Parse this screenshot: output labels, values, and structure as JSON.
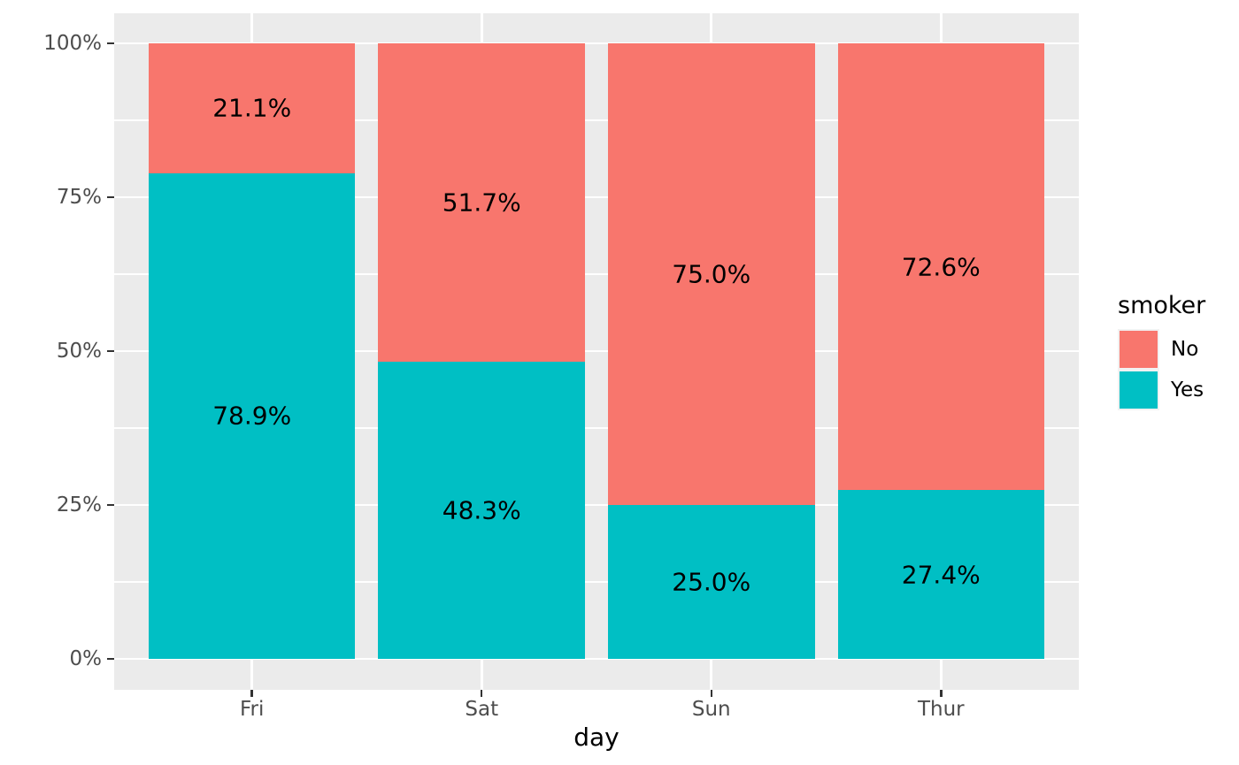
{
  "chart_data": {
    "type": "bar",
    "variant": "stacked-percent",
    "title": "",
    "xlabel": "day",
    "ylabel": "",
    "categories": [
      "Fri",
      "Sat",
      "Sun",
      "Thur"
    ],
    "series": [
      {
        "name": "No",
        "color": "#F8766D",
        "values": [
          21.1,
          51.7,
          75.0,
          72.6
        ],
        "labels": [
          "21.1%",
          "51.7%",
          "75.0%",
          "72.6%"
        ]
      },
      {
        "name": "Yes",
        "color": "#00BFC4",
        "values": [
          78.9,
          48.3,
          25.0,
          27.4
        ],
        "labels": [
          "78.9%",
          "48.3%",
          "25.0%",
          "27.4%"
        ]
      }
    ],
    "y_axis": {
      "range": [
        0,
        100
      ],
      "ticks": [
        {
          "value": 0,
          "label": "0%"
        },
        {
          "value": 25,
          "label": "25%"
        },
        {
          "value": 50,
          "label": "50%"
        },
        {
          "value": 75,
          "label": "75%"
        },
        {
          "value": 100,
          "label": "100%"
        }
      ],
      "minor": [
        12.5,
        37.5,
        62.5,
        87.5
      ]
    },
    "legend": {
      "title": "smoker",
      "position": "right",
      "entries": [
        {
          "label": "No",
          "color": "#F8766D"
        },
        {
          "label": "Yes",
          "color": "#00BFC4"
        }
      ]
    },
    "grid": true,
    "style": {
      "panel_bg": "#EBEBEB",
      "grid_color": "#FFFFFF",
      "tick_color": "#333333",
      "tick_label_color": "#4D4D4D",
      "text_color": "#000000",
      "legend_key_bg": "#F2F2F2"
    }
  }
}
